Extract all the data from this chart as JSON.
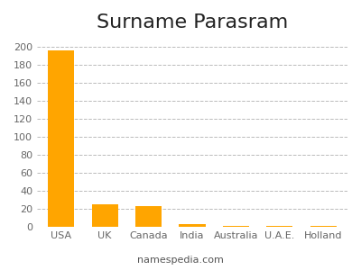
{
  "title": "Surname Parasram",
  "categories": [
    "USA",
    "UK",
    "Canada",
    "India",
    "Australia",
    "U.A.E.",
    "Holland"
  ],
  "values": [
    196,
    25,
    23,
    3,
    1,
    1,
    1
  ],
  "bar_color": "#FFA500",
  "background_color": "#ffffff",
  "ylim": [
    0,
    210
  ],
  "yticks": [
    0,
    20,
    40,
    60,
    80,
    100,
    120,
    140,
    160,
    180,
    200
  ],
  "title_fontsize": 16,
  "tick_fontsize": 8,
  "footer_text": "namespedia.com",
  "grid_color": "#bbbbbb",
  "grid_linestyle": "--"
}
